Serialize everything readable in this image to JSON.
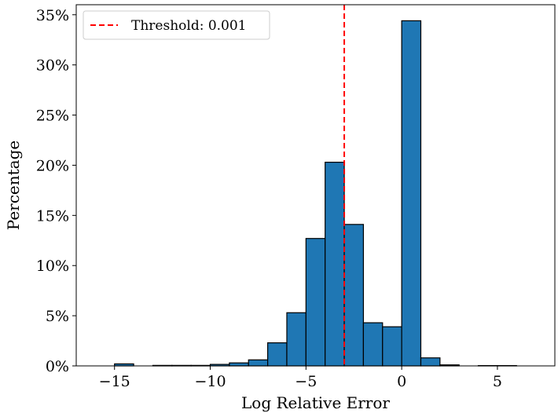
{
  "chart_data": {
    "type": "bar",
    "xlabel": "Log Relative Error",
    "ylabel": "Percentage",
    "xlim": [
      -17,
      8
    ],
    "ylim": [
      0,
      36
    ],
    "bin_width": 1,
    "x_ticks": [
      -15,
      -10,
      -5,
      0,
      5
    ],
    "x_tick_labels": [
      "−15",
      "−10",
      "−5",
      "0",
      "5"
    ],
    "y_ticks": [
      0,
      5,
      10,
      15,
      20,
      25,
      30,
      35
    ],
    "y_tick_labels": [
      "0%",
      "5%",
      "10%",
      "15%",
      "20%",
      "25%",
      "30%",
      "35%"
    ],
    "bar_color": "#1f77b4",
    "bins": [
      {
        "left": -16,
        "value": 0.0
      },
      {
        "left": -15,
        "value": 0.2
      },
      {
        "left": -14,
        "value": 0.0
      },
      {
        "left": -13,
        "value": 0.05
      },
      {
        "left": -12,
        "value": 0.05
      },
      {
        "left": -11,
        "value": 0.05
      },
      {
        "left": -10,
        "value": 0.15
      },
      {
        "left": -9,
        "value": 0.3
      },
      {
        "left": -8,
        "value": 0.6
      },
      {
        "left": -7,
        "value": 2.3
      },
      {
        "left": -6,
        "value": 5.3
      },
      {
        "left": -5,
        "value": 12.7
      },
      {
        "left": -4,
        "value": 20.3
      },
      {
        "left": -3,
        "value": 14.1
      },
      {
        "left": -2,
        "value": 4.3
      },
      {
        "left": -1,
        "value": 3.9
      },
      {
        "left": 0,
        "value": 34.4
      },
      {
        "left": 1,
        "value": 0.8
      },
      {
        "left": 2,
        "value": 0.1
      },
      {
        "left": 3,
        "value": 0.0
      },
      {
        "left": 4,
        "value": 0.03
      },
      {
        "left": 5,
        "value": 0.03
      },
      {
        "left": 6,
        "value": 0.0
      }
    ],
    "threshold": {
      "x": -3,
      "label": "Threshold: 0.001",
      "color": "#ff0000",
      "style": "dashed"
    },
    "legend_position": "top-left"
  }
}
